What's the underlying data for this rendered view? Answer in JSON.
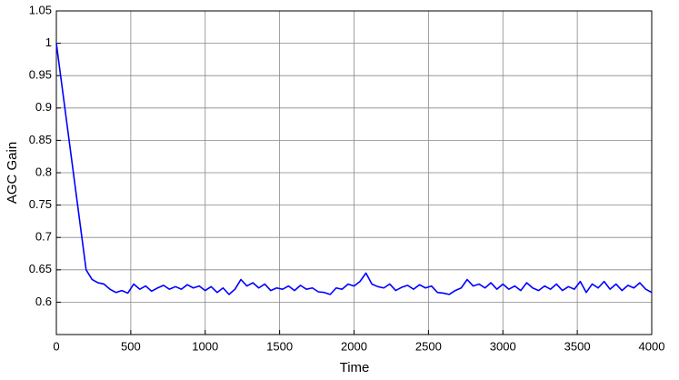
{
  "chart_data": {
    "type": "line",
    "xlabel": "Time",
    "ylabel": "AGC Gain",
    "x": [
      0,
      40,
      80,
      120,
      160,
      200,
      240,
      280,
      320,
      360,
      400,
      440,
      480,
      520,
      560,
      600,
      640,
      680,
      720,
      760,
      800,
      840,
      880,
      920,
      960,
      1000,
      1040,
      1080,
      1120,
      1160,
      1200,
      1240,
      1280,
      1320,
      1360,
      1400,
      1440,
      1480,
      1520,
      1560,
      1600,
      1640,
      1680,
      1720,
      1760,
      1800,
      1840,
      1880,
      1920,
      1960,
      2000,
      2040,
      2080,
      2120,
      2160,
      2200,
      2240,
      2280,
      2320,
      2360,
      2400,
      2440,
      2480,
      2520,
      2560,
      2600,
      2640,
      2680,
      2720,
      2760,
      2800,
      2840,
      2880,
      2920,
      2960,
      3000,
      3040,
      3080,
      3120,
      3160,
      3200,
      3240,
      3280,
      3320,
      3360,
      3400,
      3440,
      3480,
      3520,
      3560,
      3600,
      3640,
      3680,
      3720,
      3760,
      3800,
      3840,
      3880,
      3920,
      3960,
      4000
    ],
    "series": [
      {
        "name": "AGC Gain",
        "color": "#0000ff",
        "values": [
          1.0,
          0.93,
          0.86,
          0.79,
          0.72,
          0.65,
          0.635,
          0.63,
          0.628,
          0.62,
          0.615,
          0.618,
          0.614,
          0.628,
          0.62,
          0.625,
          0.617,
          0.622,
          0.626,
          0.62,
          0.624,
          0.62,
          0.627,
          0.622,
          0.625,
          0.618,
          0.624,
          0.615,
          0.622,
          0.612,
          0.62,
          0.635,
          0.625,
          0.63,
          0.622,
          0.628,
          0.618,
          0.622,
          0.62,
          0.625,
          0.618,
          0.626,
          0.62,
          0.622,
          0.616,
          0.615,
          0.612,
          0.622,
          0.62,
          0.628,
          0.625,
          0.632,
          0.645,
          0.628,
          0.624,
          0.622,
          0.628,
          0.618,
          0.623,
          0.626,
          0.62,
          0.627,
          0.622,
          0.625,
          0.615,
          0.614,
          0.612,
          0.618,
          0.622,
          0.635,
          0.625,
          0.628,
          0.622,
          0.63,
          0.62,
          0.628,
          0.62,
          0.625,
          0.618,
          0.63,
          0.622,
          0.618,
          0.625,
          0.62,
          0.628,
          0.618,
          0.624,
          0.62,
          0.632,
          0.615,
          0.628,
          0.622,
          0.632,
          0.62,
          0.628,
          0.618,
          0.626,
          0.622,
          0.63,
          0.62,
          0.615
        ]
      }
    ],
    "xlim": [
      0,
      4000
    ],
    "xticks": [
      0,
      500,
      1000,
      1500,
      2000,
      2500,
      3000,
      3500,
      4000
    ],
    "ylim": [
      0.55,
      1.05
    ],
    "yticks": [
      0.6,
      0.65,
      0.7,
      0.75,
      0.8,
      0.85,
      0.9,
      0.95,
      1,
      1.05
    ],
    "grid": true
  }
}
